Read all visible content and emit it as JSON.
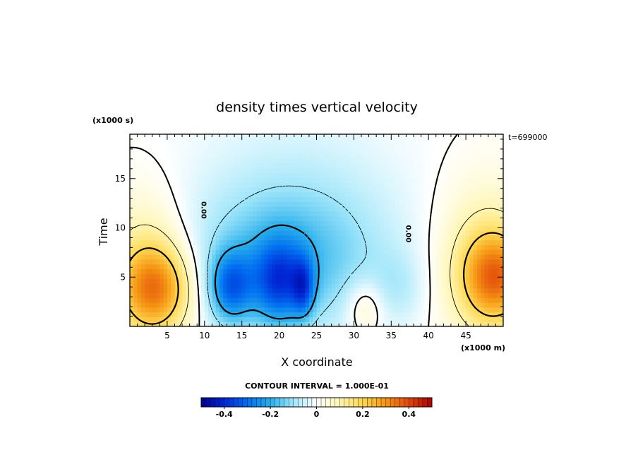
{
  "chart_data": {
    "type": "heatmap",
    "title": "density times vertical velocity",
    "xlabel": "X coordinate",
    "ylabel": "Time",
    "x_unit": "(x1000 m)",
    "y_unit": "(x1000 s)",
    "time_stamp": "t=699000",
    "xlim": [
      0,
      50
    ],
    "ylim": [
      0,
      19.5
    ],
    "x_ticks": [
      5,
      10,
      15,
      20,
      25,
      30,
      35,
      40,
      45
    ],
    "y_ticks": [
      5,
      10,
      15
    ],
    "contour_interval_text": "CONTOUR INTERVAL = 1.000E-01",
    "contour_labels": [
      {
        "text": "0.00",
        "x": 9.6,
        "y": 11.8
      },
      {
        "text": "0.00",
        "x": 37.0,
        "y": 9.4
      }
    ],
    "colorbar": {
      "range": [
        -0.5,
        0.5
      ],
      "ticks": [
        -0.4,
        -0.2,
        0,
        0.2,
        0.4
      ],
      "tick_labels": [
        "-0.4",
        "-0.2",
        "0",
        "0.2",
        "0.4"
      ]
    },
    "features": [
      {
        "kind": "positive",
        "x": 3.5,
        "y": 3.8,
        "sx": 3.4,
        "sy": 3.2,
        "amp": 0.27
      },
      {
        "kind": "positive",
        "x": 2.0,
        "y": 6.0,
        "sx": 4.0,
        "sy": 5.5,
        "amp": 0.12
      },
      {
        "kind": "positive",
        "x": 49.0,
        "y": 5.0,
        "sx": 3.2,
        "sy": 3.2,
        "amp": 0.27
      },
      {
        "kind": "positive",
        "x": 47.5,
        "y": 6.5,
        "sx": 4.5,
        "sy": 6.0,
        "amp": 0.12
      },
      {
        "kind": "positive",
        "x": 31.5,
        "y": 2.0,
        "sx": 1.8,
        "sy": 2.0,
        "amp": 0.1
      },
      {
        "kind": "negative",
        "x": 13.5,
        "y": 4.0,
        "sx": 2.0,
        "sy": 2.5,
        "amp": -0.23
      },
      {
        "kind": "negative",
        "x": 20.0,
        "y": 4.5,
        "sx": 2.5,
        "sy": 3.0,
        "amp": -0.24
      },
      {
        "kind": "negative",
        "x": 23.2,
        "y": 4.0,
        "sx": 1.0,
        "sy": 2.0,
        "amp": -0.18
      },
      {
        "kind": "negative",
        "x": 21.0,
        "y": 6.5,
        "sx": 9.0,
        "sy": 5.0,
        "amp": -0.14
      },
      {
        "kind": "negative",
        "x": 22.0,
        "y": 12.0,
        "sx": 10.0,
        "sy": 7.0,
        "amp": -0.06
      },
      {
        "kind": "negative",
        "x": 36.0,
        "y": 4.0,
        "sx": 2.5,
        "sy": 2.5,
        "amp": -0.05
      }
    ]
  }
}
